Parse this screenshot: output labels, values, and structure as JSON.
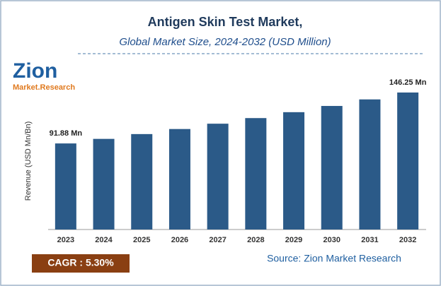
{
  "logo": {
    "brand": "Zion",
    "tagline": "Market.Research"
  },
  "chart_data": {
    "type": "bar",
    "title": "Antigen Skin Test Market,",
    "subtitle": "Global Market Size, 2024-2032 (USD Million)",
    "y_label": "Revenue (USD Mn/Bn)",
    "categories": [
      "2023",
      "2024",
      "2025",
      "2026",
      "2027",
      "2028",
      "2029",
      "2030",
      "2031",
      "2032"
    ],
    "values": [
      91.88,
      96.75,
      101.88,
      107.28,
      112.96,
      118.95,
      125.26,
      131.9,
      138.89,
      146.25
    ],
    "value_labels": [
      "91.88 Mn",
      null,
      null,
      null,
      null,
      null,
      null,
      null,
      null,
      "146.25 Mn"
    ],
    "color": "#2b5a88",
    "annotations": {
      "cagr": "CAGR : 5.30%",
      "source": "Source: Zion Market Research"
    }
  }
}
